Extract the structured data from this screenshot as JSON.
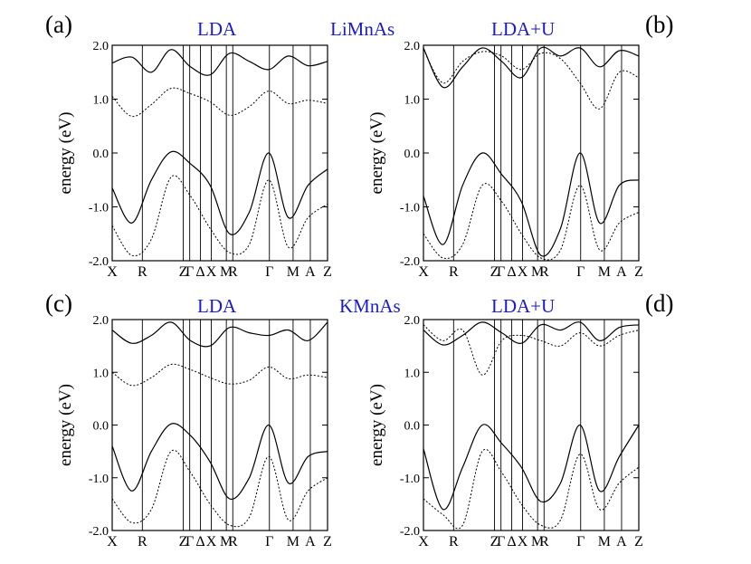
{
  "compound_labels": [
    "LiMnAs",
    "KMnAs"
  ],
  "chart_data": [
    {
      "type": "line",
      "panel": "(a)",
      "compound": "LiMnAs",
      "title": "LDA",
      "ylabel": "energy (eV)",
      "xlabel": "",
      "ylim": [
        -2.0,
        2.0
      ],
      "yticks": [
        "-2.0",
        "-1.0",
        "0.0",
        "1.0",
        "2.0"
      ],
      "k_labels": [
        "X",
        "R",
        "Z",
        "Γ",
        "Δ",
        "X",
        "M",
        "R",
        "Γ",
        "M",
        "A",
        "Z"
      ],
      "k_positions": [
        0,
        0.14,
        0.33,
        0.36,
        0.41,
        0.46,
        0.53,
        0.56,
        0.73,
        0.84,
        0.92,
        1.0
      ],
      "grid": false,
      "series_description": "electronic band dispersion curves",
      "series": [
        {
          "name": "band",
          "values": [
            1.67,
            1.78,
            1.5,
            1.92,
            1.6,
            1.45,
            1.85,
            1.7,
            1.55,
            1.8,
            1.62,
            1.7
          ]
        },
        {
          "name": "band",
          "values": [
            1.05,
            0.68,
            0.9,
            1.2,
            1.1,
            0.95,
            0.7,
            0.86,
            1.15,
            0.92,
            0.98,
            0.92
          ]
        },
        {
          "name": "band",
          "values": [
            -0.65,
            -1.3,
            -0.5,
            0.02,
            -0.2,
            -0.6,
            -1.5,
            -1.1,
            0.0,
            -1.2,
            -0.6,
            -0.3
          ]
        },
        {
          "name": "band",
          "values": [
            -1.35,
            -1.9,
            -1.6,
            -0.45,
            -0.8,
            -1.4,
            -1.85,
            -1.7,
            -0.5,
            -1.75,
            -1.2,
            -0.95
          ]
        }
      ]
    },
    {
      "type": "line",
      "panel": "(b)",
      "compound": "LiMnAs",
      "title": "LDA+U",
      "ylabel": "energy (eV)",
      "xlabel": "",
      "ylim": [
        -2.0,
        2.0
      ],
      "yticks": [
        "-2.0",
        "-1.0",
        "0.0",
        "1.0",
        "2.0"
      ],
      "k_labels": [
        "X",
        "R",
        "Z",
        "Γ",
        "Δ",
        "X",
        "M",
        "R",
        "Γ",
        "M",
        "A",
        "Z"
      ],
      "k_positions": [
        0,
        0.14,
        0.33,
        0.36,
        0.41,
        0.46,
        0.53,
        0.56,
        0.73,
        0.84,
        0.92,
        1.0
      ],
      "grid": false,
      "series_description": "electronic band dispersion curves",
      "series": [
        {
          "name": "band",
          "values": [
            1.95,
            1.22,
            1.6,
            1.95,
            1.7,
            1.4,
            1.95,
            1.8,
            1.95,
            1.6,
            1.9,
            1.8
          ]
        },
        {
          "name": "band",
          "values": [
            1.92,
            1.3,
            1.7,
            1.88,
            1.8,
            1.55,
            1.85,
            1.75,
            1.3,
            0.82,
            1.5,
            1.4
          ]
        },
        {
          "name": "band",
          "values": [
            -0.8,
            -1.7,
            -0.6,
            0.0,
            -0.4,
            -0.9,
            -1.9,
            -1.4,
            0.0,
            -1.3,
            -0.6,
            -0.5
          ]
        },
        {
          "name": "band",
          "values": [
            -1.5,
            -1.95,
            -1.7,
            -0.6,
            -0.9,
            -1.5,
            -1.95,
            -1.8,
            -0.6,
            -1.8,
            -1.3,
            -1.1
          ]
        }
      ]
    },
    {
      "type": "line",
      "panel": "(c)",
      "compound": "KMnAs",
      "title": "LDA",
      "ylabel": "energy (eV)",
      "xlabel": "",
      "ylim": [
        -2.0,
        2.0
      ],
      "yticks": [
        "-2.0",
        "-1.0",
        "0.0",
        "1.0",
        "2.0"
      ],
      "k_labels": [
        "X",
        "R",
        "Z",
        "Γ",
        "Δ",
        "X",
        "M",
        "R",
        "Γ",
        "M",
        "A",
        "Z"
      ],
      "k_positions": [
        0,
        0.14,
        0.33,
        0.36,
        0.41,
        0.46,
        0.53,
        0.56,
        0.73,
        0.84,
        0.92,
        1.0
      ],
      "grid": false,
      "series_description": "electronic band dispersion curves",
      "series": [
        {
          "name": "band",
          "values": [
            1.8,
            1.55,
            1.7,
            1.95,
            1.6,
            1.5,
            1.85,
            1.75,
            1.7,
            1.8,
            1.6,
            1.95
          ]
        },
        {
          "name": "band",
          "values": [
            1.0,
            0.75,
            0.9,
            1.15,
            1.05,
            0.9,
            0.78,
            0.85,
            1.1,
            0.88,
            0.95,
            0.9
          ]
        },
        {
          "name": "band",
          "values": [
            -0.4,
            -1.25,
            -0.5,
            0.02,
            -0.2,
            -0.7,
            -1.4,
            -1.0,
            0.0,
            -1.1,
            -0.6,
            -0.5
          ]
        },
        {
          "name": "band",
          "values": [
            -1.4,
            -1.85,
            -1.6,
            -0.5,
            -0.9,
            -1.5,
            -1.9,
            -1.75,
            -0.6,
            -1.8,
            -1.25,
            -1.0
          ]
        }
      ]
    },
    {
      "type": "line",
      "panel": "(d)",
      "compound": "KMnAs",
      "title": "LDA+U",
      "ylabel": "energy (eV)",
      "xlabel": "",
      "ylim": [
        -2.0,
        2.0
      ],
      "yticks": [
        "-2.0",
        "-1.0",
        "0.0",
        "1.0",
        "2.0"
      ],
      "k_labels": [
        "X",
        "R",
        "Z",
        "Γ",
        "Δ",
        "X",
        "M",
        "R",
        "Γ",
        "M",
        "A",
        "Z"
      ],
      "k_positions": [
        0,
        0.14,
        0.33,
        0.36,
        0.41,
        0.46,
        0.53,
        0.56,
        0.73,
        0.84,
        0.92,
        1.0
      ],
      "grid": false,
      "series_description": "electronic band dispersion curves",
      "series": [
        {
          "name": "band",
          "values": [
            1.8,
            1.52,
            1.7,
            1.95,
            1.75,
            1.55,
            1.9,
            1.8,
            1.95,
            1.6,
            1.85,
            1.9
          ]
        },
        {
          "name": "band",
          "values": [
            1.9,
            1.6,
            1.8,
            0.95,
            1.6,
            1.7,
            1.6,
            1.5,
            1.75,
            1.5,
            1.7,
            1.8
          ]
        },
        {
          "name": "band",
          "values": [
            -0.45,
            -1.6,
            -0.8,
            0.0,
            -0.35,
            -0.8,
            -1.45,
            -1.1,
            0.0,
            -1.25,
            -0.6,
            0.0
          ]
        },
        {
          "name": "band",
          "values": [
            -1.4,
            -1.7,
            -1.9,
            -0.5,
            -0.9,
            -1.5,
            -1.9,
            -1.8,
            -0.55,
            -1.6,
            -1.1,
            -0.8
          ]
        }
      ]
    }
  ]
}
